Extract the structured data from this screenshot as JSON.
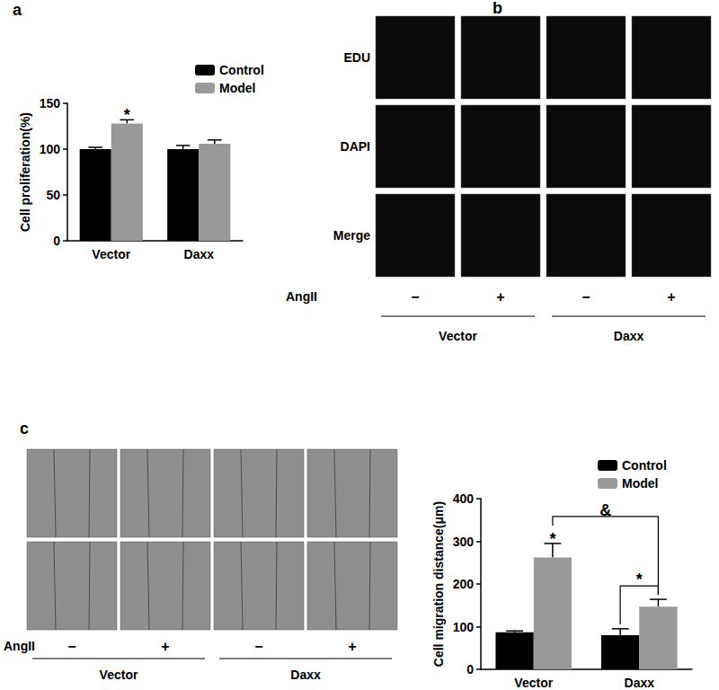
{
  "chart_data": [
    {
      "type": "bar",
      "categories": [
        "Vector",
        "Daxx"
      ],
      "series": [
        {
          "name": "Control",
          "color": "#000000",
          "values": [
            100,
            100
          ],
          "errors": [
            2,
            4
          ]
        },
        {
          "name": "Model",
          "color": "#999999",
          "values": [
            128,
            106
          ],
          "errors": [
            4,
            4
          ]
        }
      ],
      "y_label": "Cell proliferation(%)",
      "ylim": [
        0,
        150
      ],
      "yticks": [
        0,
        50,
        100,
        150
      ],
      "grid": false,
      "legend": "upper right",
      "annotations": [
        {
          "text": "*",
          "category": "Vector",
          "series": "Model"
        }
      ]
    },
    {
      "type": "bar",
      "categories": [
        "Vector",
        "Daxx"
      ],
      "series": [
        {
          "name": "Control",
          "color": "#000000",
          "values": [
            87,
            80
          ],
          "errors": [
            3,
            15
          ]
        },
        {
          "name": "Model",
          "color": "#999999",
          "values": [
            262,
            147
          ],
          "errors": [
            33,
            17
          ]
        }
      ],
      "y_label": "Cell migration distance(μm)",
      "ylim": [
        0,
        400
      ],
      "yticks": [
        0,
        100,
        200,
        300,
        400
      ],
      "grid": false,
      "legend": "upper right",
      "annotations": [
        {
          "text": "*",
          "category": "Vector",
          "series": "Model"
        },
        {
          "text": "&",
          "from": [
            "Vector",
            "Model"
          ],
          "to": [
            "Daxx",
            "Model"
          ]
        },
        {
          "text": "*",
          "from": [
            "Daxx",
            "Control"
          ],
          "to": [
            "Daxx",
            "Model"
          ]
        }
      ]
    }
  ],
  "figure": {
    "panel_labels": [
      "a",
      "b",
      "c"
    ],
    "image_grids": [
      {
        "row_labels": [
          "EDU",
          "DAPI",
          "Merge"
        ],
        "columns": 4,
        "treatment_label": "AngII",
        "treatment": [
          "−",
          "+",
          "−",
          "+"
        ],
        "groups": [
          "Vector",
          "Daxx"
        ]
      },
      {
        "rows": 2,
        "columns": 4,
        "treatment_label": "AngII",
        "treatment": [
          "−",
          "+",
          "−",
          "+"
        ],
        "groups": [
          "Vector",
          "Daxx"
        ]
      }
    ]
  }
}
